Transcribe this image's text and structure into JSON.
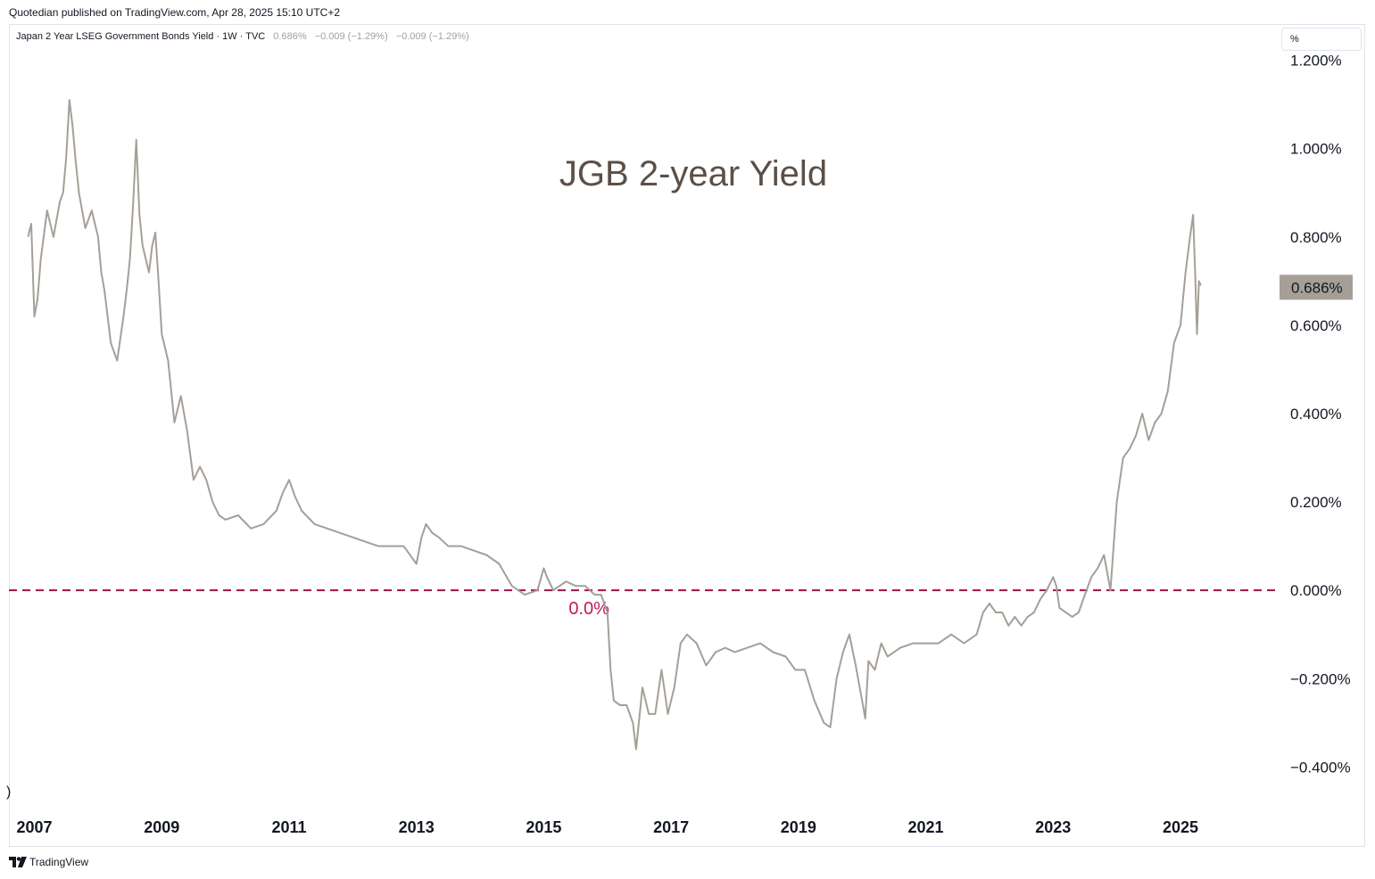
{
  "header": {
    "published": "Quotedian published on TradingView.com, Apr 28, 2025 15:10 UTC+2"
  },
  "legend": {
    "symbol": "Japan 2 Year LSEG Government Bonds Yield · 1W · TVC",
    "last": "0.686%",
    "change": "−0.009 (−1.29%)",
    "change2": "−0.009 (−1.29%)"
  },
  "unit_button": "%",
  "footer": {
    "brand": "TradingView"
  },
  "edge_glyph": ")",
  "colors": {
    "line": "#a59f97",
    "zero_line": "#a3104c",
    "last_badge": "#a59f97",
    "title": "#5c4f47"
  },
  "chart_data": {
    "type": "line",
    "title": "JGB 2-year Yield",
    "xlabel": "",
    "ylabel": "",
    "xlim": [
      2006.6,
      2026.5
    ],
    "ylim": [
      -0.48,
      1.28
    ],
    "yticks": [
      1.2,
      1.0,
      0.8,
      0.6,
      0.4,
      0.2,
      0.0,
      -0.2,
      -0.4
    ],
    "ytick_labels": [
      "1.200%",
      "1.000%",
      "0.800%",
      "0.600%",
      "0.400%",
      "0.200%",
      "0.000%",
      "−0.200%",
      "−0.400%"
    ],
    "xticks": [
      2007,
      2009,
      2011,
      2013,
      2015,
      2017,
      2019,
      2021,
      2023,
      2025
    ],
    "xtick_labels": [
      "2007",
      "2009",
      "2011",
      "2013",
      "2015",
      "2017",
      "2019",
      "2021",
      "2023",
      "2025"
    ],
    "last_value_label": "0.686%",
    "last_value": 0.686,
    "grid": false,
    "annotations": [
      {
        "text": "0.0%",
        "x": 2015.7,
        "y": 0.0,
        "style": "dashed horizontal line"
      }
    ],
    "series": [
      {
        "x": [
          2006.9,
          2006.95,
          2007.0,
          2007.05,
          2007.1,
          2007.2,
          2007.3,
          2007.4,
          2007.45,
          2007.5,
          2007.55,
          2007.6,
          2007.65,
          2007.7,
          2007.8,
          2007.9,
          2008.0,
          2008.05,
          2008.1,
          2008.2,
          2008.3,
          2008.4,
          2008.45,
          2008.5,
          2008.55,
          2008.6,
          2008.65,
          2008.7,
          2008.8,
          2008.85,
          2008.9,
          2008.95,
          2009.0,
          2009.1,
          2009.2,
          2009.3,
          2009.4,
          2009.5,
          2009.6,
          2009.7,
          2009.8,
          2009.9,
          2010.0,
          2010.2,
          2010.4,
          2010.6,
          2010.8,
          2010.9,
          2011.0,
          2011.1,
          2011.2,
          2011.4,
          2011.6,
          2011.8,
          2012.0,
          2012.2,
          2012.4,
          2012.6,
          2012.8,
          2013.0,
          2013.08,
          2013.15,
          2013.25,
          2013.35,
          2013.5,
          2013.7,
          2013.9,
          2014.1,
          2014.3,
          2014.5,
          2014.7,
          2014.9,
          2015.0,
          2015.05,
          2015.15,
          2015.25,
          2015.35,
          2015.5,
          2015.65,
          2015.8,
          2015.9,
          2016.0,
          2016.05,
          2016.1,
          2016.2,
          2016.3,
          2016.4,
          2016.45,
          2016.55,
          2016.65,
          2016.75,
          2016.85,
          2016.95,
          2017.05,
          2017.15,
          2017.25,
          2017.4,
          2017.55,
          2017.7,
          2017.85,
          2018.0,
          2018.2,
          2018.4,
          2018.6,
          2018.8,
          2018.95,
          2019.1,
          2019.25,
          2019.4,
          2019.5,
          2019.6,
          2019.7,
          2019.8,
          2019.9,
          2020.0,
          2020.05,
          2020.1,
          2020.2,
          2020.3,
          2020.4,
          2020.6,
          2020.8,
          2021.0,
          2021.2,
          2021.4,
          2021.6,
          2021.8,
          2021.9,
          2022.0,
          2022.1,
          2022.2,
          2022.3,
          2022.4,
          2022.5,
          2022.6,
          2022.7,
          2022.8,
          2022.9,
          2023.0,
          2023.05,
          2023.1,
          2023.2,
          2023.3,
          2023.4,
          2023.5,
          2023.6,
          2023.7,
          2023.8,
          2023.9,
          2024.0,
          2024.1,
          2024.2,
          2024.3,
          2024.4,
          2024.5,
          2024.6,
          2024.7,
          2024.8,
          2024.9,
          2025.0,
          2025.08,
          2025.15,
          2025.2,
          2025.23,
          2025.26,
          2025.29,
          2025.32
        ],
        "values": [
          0.8,
          0.83,
          0.62,
          0.66,
          0.75,
          0.86,
          0.8,
          0.88,
          0.9,
          0.98,
          1.11,
          1.05,
          0.97,
          0.9,
          0.82,
          0.86,
          0.8,
          0.72,
          0.68,
          0.56,
          0.52,
          0.62,
          0.68,
          0.75,
          0.87,
          1.02,
          0.85,
          0.78,
          0.72,
          0.78,
          0.81,
          0.7,
          0.58,
          0.52,
          0.38,
          0.44,
          0.36,
          0.25,
          0.28,
          0.25,
          0.2,
          0.17,
          0.16,
          0.17,
          0.14,
          0.15,
          0.18,
          0.22,
          0.25,
          0.21,
          0.18,
          0.15,
          0.14,
          0.13,
          0.12,
          0.11,
          0.1,
          0.1,
          0.1,
          0.06,
          0.12,
          0.15,
          0.13,
          0.12,
          0.1,
          0.1,
          0.09,
          0.08,
          0.06,
          0.01,
          -0.01,
          0.0,
          0.05,
          0.03,
          0.0,
          0.01,
          0.02,
          0.01,
          0.01,
          -0.01,
          -0.01,
          -0.05,
          -0.18,
          -0.25,
          -0.26,
          -0.26,
          -0.3,
          -0.36,
          -0.22,
          -0.28,
          -0.28,
          -0.18,
          -0.28,
          -0.22,
          -0.12,
          -0.1,
          -0.12,
          -0.17,
          -0.14,
          -0.13,
          -0.14,
          -0.13,
          -0.12,
          -0.14,
          -0.15,
          -0.18,
          -0.18,
          -0.25,
          -0.3,
          -0.31,
          -0.2,
          -0.14,
          -0.1,
          -0.17,
          -0.25,
          -0.29,
          -0.16,
          -0.18,
          -0.12,
          -0.15,
          -0.13,
          -0.12,
          -0.12,
          -0.12,
          -0.1,
          -0.12,
          -0.1,
          -0.05,
          -0.03,
          -0.05,
          -0.05,
          -0.08,
          -0.06,
          -0.08,
          -0.06,
          -0.05,
          -0.02,
          0.0,
          0.03,
          0.01,
          -0.04,
          -0.05,
          -0.06,
          -0.05,
          -0.01,
          0.03,
          0.05,
          0.08,
          0.0,
          0.2,
          0.3,
          0.32,
          0.35,
          0.4,
          0.34,
          0.38,
          0.4,
          0.45,
          0.56,
          0.6,
          0.72,
          0.8,
          0.85,
          0.72,
          0.58,
          0.7,
          0.69
        ]
      }
    ]
  }
}
